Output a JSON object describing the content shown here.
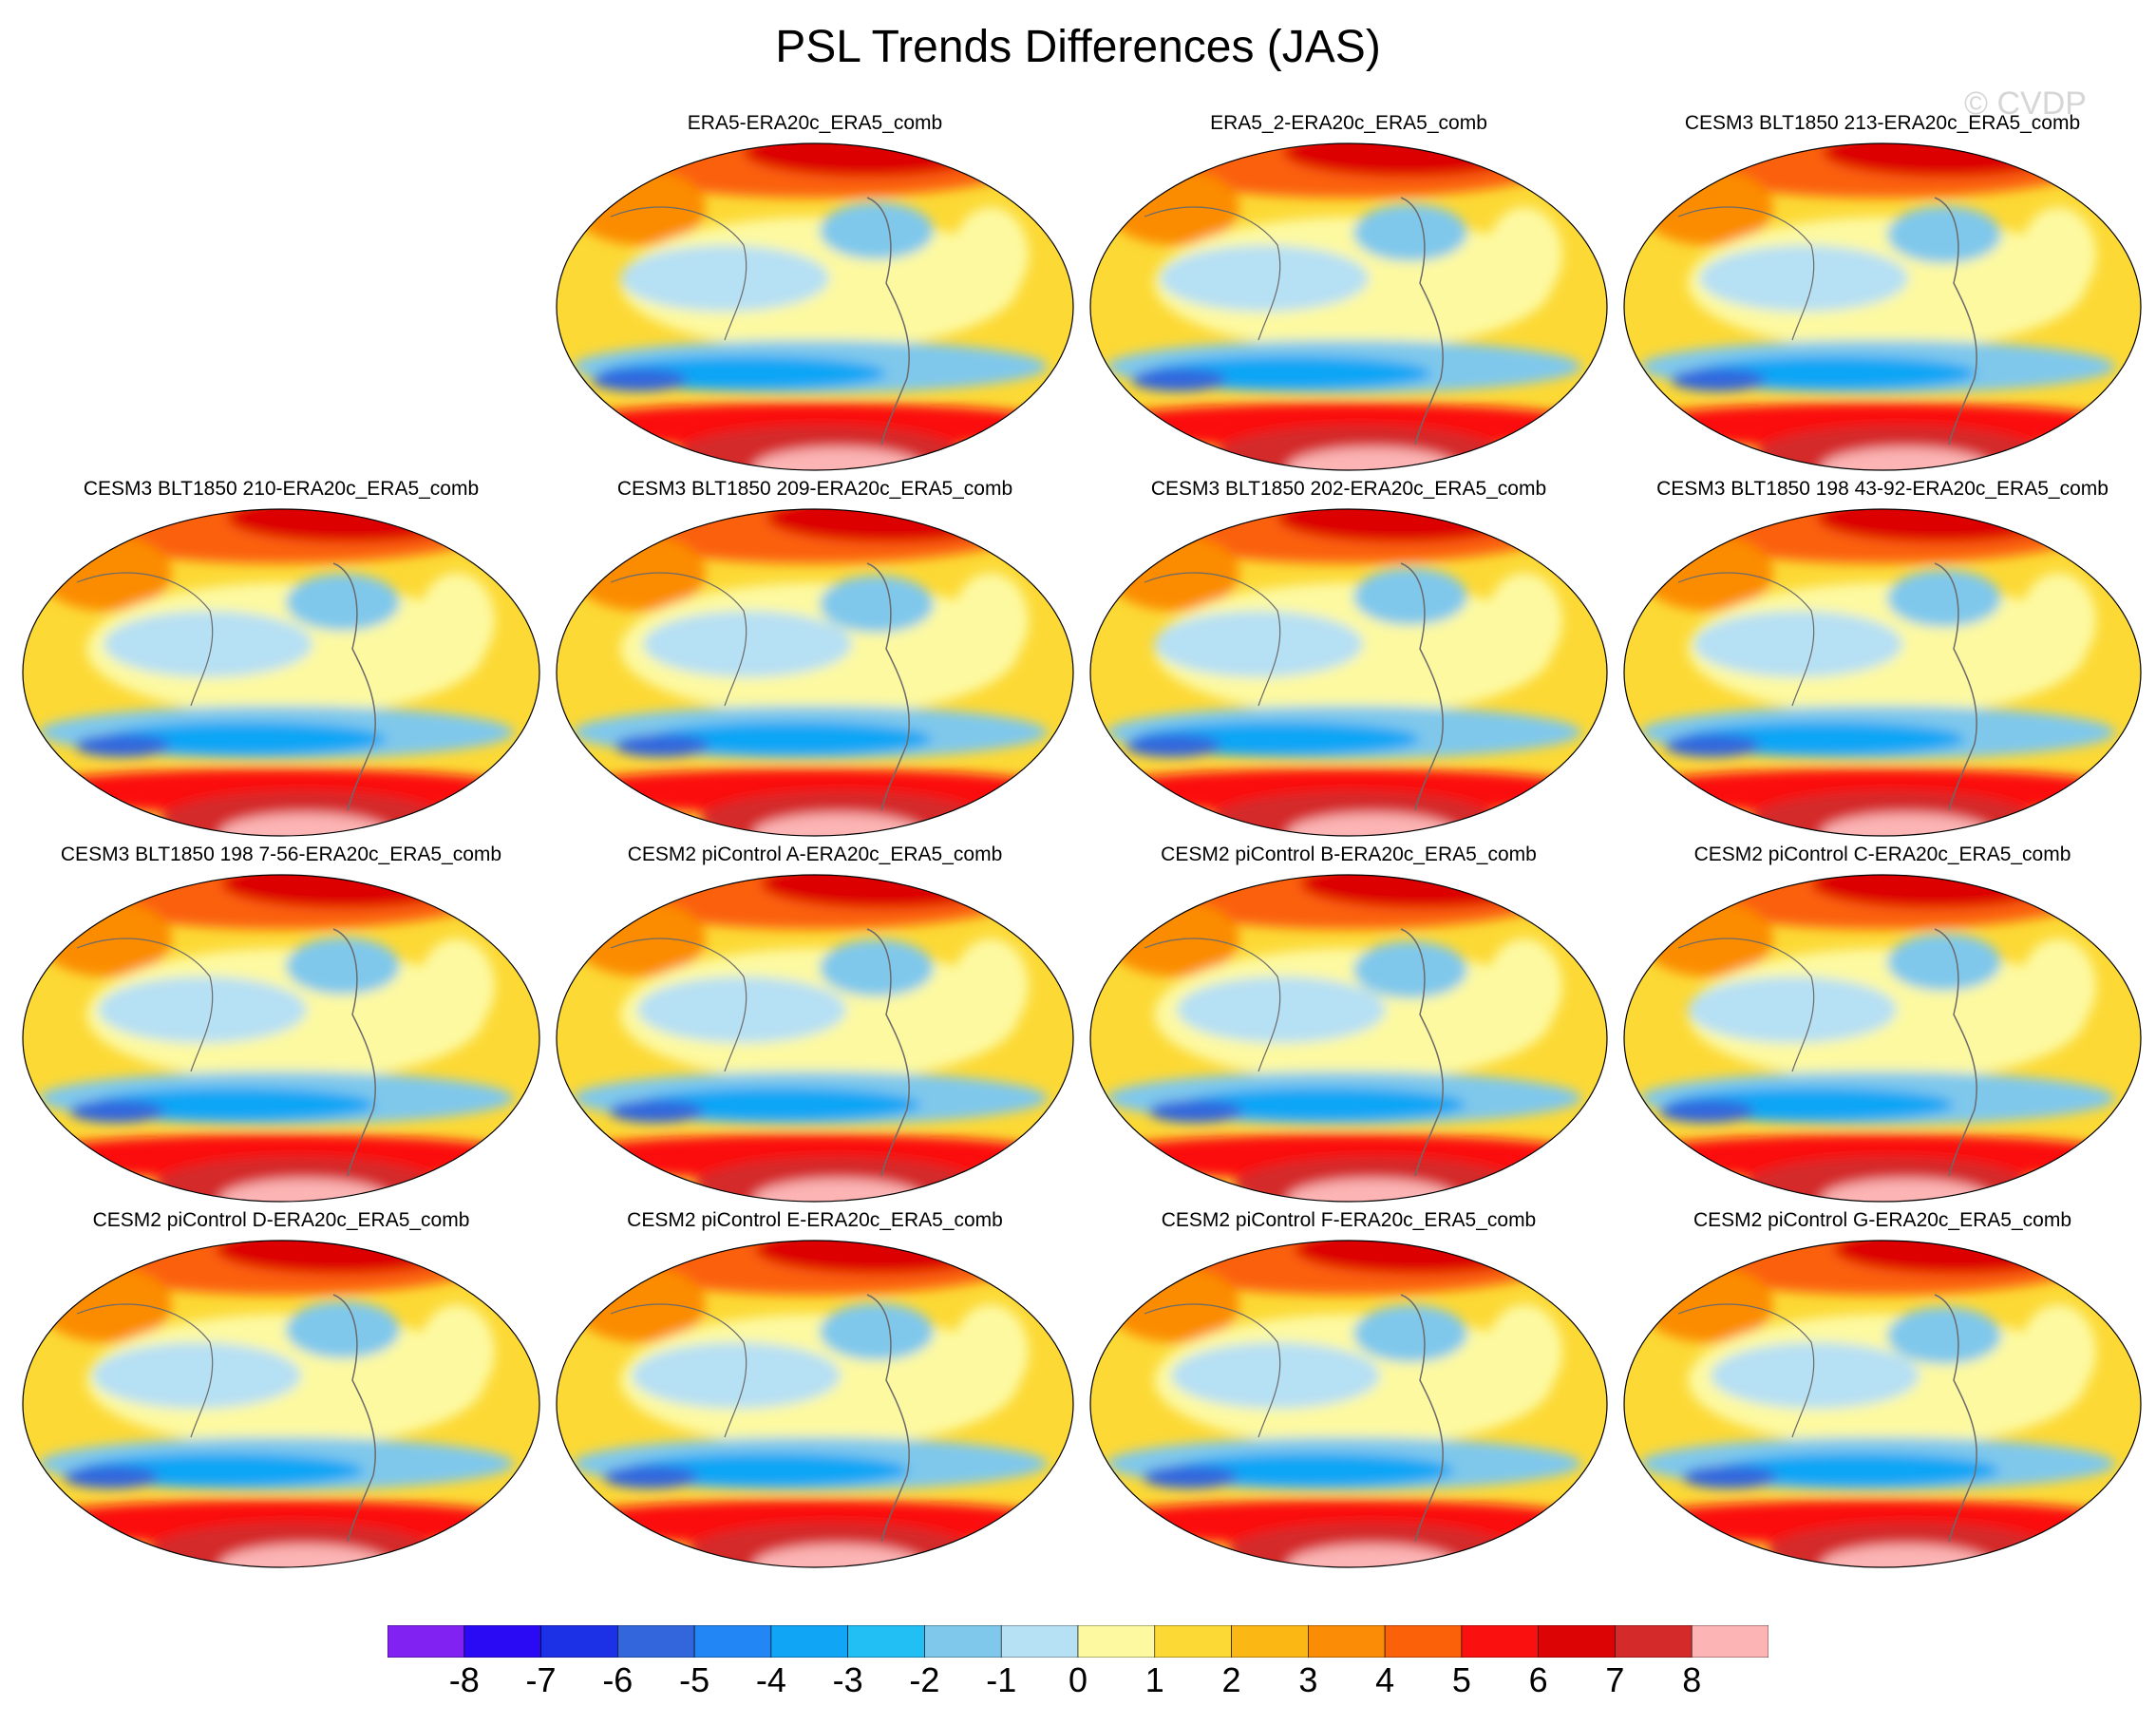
{
  "title": "PSL Trends Differences (JAS)",
  "watermark": "© CVDP",
  "panels": [
    {
      "label": "ERA5-ERA20c_ERA5_comb",
      "row": 0,
      "col": 1
    },
    {
      "label": "ERA5_2-ERA20c_ERA5_comb",
      "row": 0,
      "col": 2
    },
    {
      "label": "CESM3 BLT1850 213-ERA20c_ERA5_comb",
      "row": 0,
      "col": 3
    },
    {
      "label": "CESM3 BLT1850 210-ERA20c_ERA5_comb",
      "row": 1,
      "col": 0
    },
    {
      "label": "CESM3 BLT1850 209-ERA20c_ERA5_comb",
      "row": 1,
      "col": 1
    },
    {
      "label": "CESM3 BLT1850 202-ERA20c_ERA5_comb",
      "row": 1,
      "col": 2
    },
    {
      "label": "CESM3 BLT1850 198 43-92-ERA20c_ERA5_comb",
      "row": 1,
      "col": 3
    },
    {
      "label": "CESM3 BLT1850 198 7-56-ERA20c_ERA5_comb",
      "row": 2,
      "col": 0
    },
    {
      "label": "CESM2 piControl A-ERA20c_ERA5_comb",
      "row": 2,
      "col": 1
    },
    {
      "label": "CESM2 piControl B-ERA20c_ERA5_comb",
      "row": 2,
      "col": 2
    },
    {
      "label": "CESM2 piControl C-ERA20c_ERA5_comb",
      "row": 2,
      "col": 3
    },
    {
      "label": "CESM2 piControl D-ERA20c_ERA5_comb",
      "row": 3,
      "col": 0
    },
    {
      "label": "CESM2 piControl E-ERA20c_ERA5_comb",
      "row": 3,
      "col": 1
    },
    {
      "label": "CESM2 piControl F-ERA20c_ERA5_comb",
      "row": 3,
      "col": 2
    },
    {
      "label": "CESM2 piControl G-ERA20c_ERA5_comb",
      "row": 3,
      "col": 3
    }
  ],
  "colorbar": {
    "colors": [
      "#8122f2",
      "#2a0af5",
      "#1c30e6",
      "#3366dd",
      "#2286f5",
      "#11a5f5",
      "#22bff5",
      "#7fc8ec",
      "#b6e0f4",
      "#fdf9a1",
      "#fcd935",
      "#fbb814",
      "#fb8c06",
      "#fb6108",
      "#fb1010",
      "#dc0404",
      "#d42a2a",
      "#fcb4b4"
    ],
    "ticks": [
      "-8",
      "-7",
      "-6",
      "-5",
      "-4",
      "-3",
      "-2",
      "-1",
      "0",
      "1",
      "2",
      "3",
      "4",
      "5",
      "6",
      "7",
      "8"
    ]
  }
}
